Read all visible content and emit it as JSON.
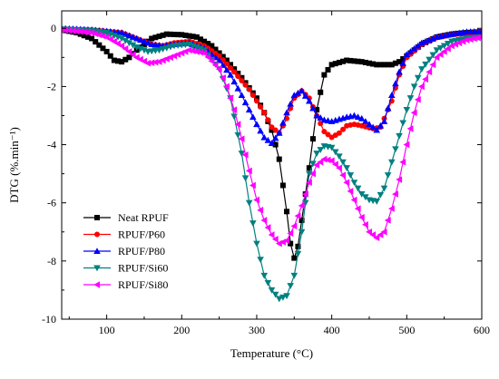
{
  "chart_data": {
    "type": "line",
    "xlabel": "Temperature (°C)",
    "ylabel": "DTG (%.min⁻¹)",
    "xlim": [
      40,
      600
    ],
    "ylim": [
      -10,
      0.6
    ],
    "xticks": [
      100,
      200,
      300,
      400,
      500,
      600
    ],
    "yticks": [
      0,
      -2,
      -4,
      -6,
      -8,
      -10
    ],
    "grid": false,
    "legend_position": "bottom-left",
    "series": [
      {
        "name": "Neat RPUF",
        "color": "#000000",
        "marker": "square",
        "points": [
          [
            40,
            -0.05
          ],
          [
            60,
            -0.15
          ],
          [
            80,
            -0.35
          ],
          [
            100,
            -0.8
          ],
          [
            110,
            -1.1
          ],
          [
            120,
            -1.15
          ],
          [
            130,
            -1.0
          ],
          [
            140,
            -0.75
          ],
          [
            160,
            -0.35
          ],
          [
            180,
            -0.2
          ],
          [
            200,
            -0.22
          ],
          [
            220,
            -0.3
          ],
          [
            240,
            -0.6
          ],
          [
            260,
            -1.1
          ],
          [
            280,
            -1.7
          ],
          [
            300,
            -2.4
          ],
          [
            310,
            -2.9
          ],
          [
            320,
            -3.5
          ],
          [
            330,
            -4.5
          ],
          [
            340,
            -6.3
          ],
          [
            345,
            -7.4
          ],
          [
            350,
            -7.9
          ],
          [
            355,
            -7.5
          ],
          [
            360,
            -6.6
          ],
          [
            370,
            -4.8
          ],
          [
            380,
            -2.8
          ],
          [
            390,
            -1.6
          ],
          [
            400,
            -1.25
          ],
          [
            420,
            -1.1
          ],
          [
            440,
            -1.15
          ],
          [
            460,
            -1.25
          ],
          [
            480,
            -1.25
          ],
          [
            490,
            -1.15
          ],
          [
            500,
            -0.95
          ],
          [
            520,
            -0.55
          ],
          [
            540,
            -0.3
          ],
          [
            560,
            -0.2
          ],
          [
            580,
            -0.15
          ],
          [
            600,
            -0.12
          ]
        ]
      },
      {
        "name": "RPUF/P60",
        "color": "#ff0000",
        "marker": "circle",
        "points": [
          [
            40,
            -0.02
          ],
          [
            80,
            -0.05
          ],
          [
            120,
            -0.15
          ],
          [
            140,
            -0.35
          ],
          [
            160,
            -0.55
          ],
          [
            175,
            -0.6
          ],
          [
            190,
            -0.5
          ],
          [
            210,
            -0.45
          ],
          [
            230,
            -0.6
          ],
          [
            250,
            -0.95
          ],
          [
            270,
            -1.5
          ],
          [
            290,
            -2.1
          ],
          [
            310,
            -2.9
          ],
          [
            320,
            -3.4
          ],
          [
            330,
            -3.6
          ],
          [
            340,
            -3.1
          ],
          [
            350,
            -2.4
          ],
          [
            360,
            -2.15
          ],
          [
            370,
            -2.4
          ],
          [
            380,
            -3.0
          ],
          [
            390,
            -3.55
          ],
          [
            400,
            -3.75
          ],
          [
            410,
            -3.6
          ],
          [
            420,
            -3.35
          ],
          [
            430,
            -3.3
          ],
          [
            440,
            -3.35
          ],
          [
            455,
            -3.45
          ],
          [
            465,
            -3.4
          ],
          [
            480,
            -2.5
          ],
          [
            490,
            -1.6
          ],
          [
            500,
            -1.0
          ],
          [
            520,
            -0.55
          ],
          [
            540,
            -0.32
          ],
          [
            560,
            -0.22
          ],
          [
            580,
            -0.17
          ],
          [
            600,
            -0.12
          ]
        ]
      },
      {
        "name": "RPUF/P80",
        "color": "#0000ff",
        "marker": "triangle-up",
        "points": [
          [
            40,
            0
          ],
          [
            80,
            -0.05
          ],
          [
            120,
            -0.15
          ],
          [
            140,
            -0.35
          ],
          [
            160,
            -0.55
          ],
          [
            175,
            -0.6
          ],
          [
            190,
            -0.55
          ],
          [
            210,
            -0.5
          ],
          [
            230,
            -0.7
          ],
          [
            250,
            -1.1
          ],
          [
            265,
            -1.6
          ],
          [
            280,
            -2.3
          ],
          [
            300,
            -3.3
          ],
          [
            310,
            -3.75
          ],
          [
            320,
            -3.95
          ],
          [
            330,
            -3.6
          ],
          [
            340,
            -2.9
          ],
          [
            350,
            -2.3
          ],
          [
            360,
            -2.15
          ],
          [
            370,
            -2.5
          ],
          [
            380,
            -3.0
          ],
          [
            390,
            -3.15
          ],
          [
            400,
            -3.2
          ],
          [
            420,
            -3.05
          ],
          [
            430,
            -3.0
          ],
          [
            440,
            -3.1
          ],
          [
            450,
            -3.3
          ],
          [
            460,
            -3.5
          ],
          [
            470,
            -3.2
          ],
          [
            480,
            -2.3
          ],
          [
            490,
            -1.5
          ],
          [
            500,
            -0.9
          ],
          [
            520,
            -0.5
          ],
          [
            540,
            -0.3
          ],
          [
            560,
            -0.2
          ],
          [
            580,
            -0.12
          ],
          [
            600,
            -0.1
          ]
        ]
      },
      {
        "name": "RPUF/Si60",
        "color": "#008080",
        "marker": "triangle-down",
        "points": [
          [
            40,
            -0.03
          ],
          [
            80,
            -0.08
          ],
          [
            100,
            -0.15
          ],
          [
            120,
            -0.35
          ],
          [
            140,
            -0.65
          ],
          [
            155,
            -0.8
          ],
          [
            170,
            -0.75
          ],
          [
            190,
            -0.6
          ],
          [
            210,
            -0.55
          ],
          [
            230,
            -0.75
          ],
          [
            250,
            -1.4
          ],
          [
            265,
            -2.4
          ],
          [
            280,
            -4.3
          ],
          [
            290,
            -6.0
          ],
          [
            300,
            -7.4
          ],
          [
            310,
            -8.5
          ],
          [
            320,
            -9.0
          ],
          [
            330,
            -9.3
          ],
          [
            340,
            -9.2
          ],
          [
            350,
            -8.5
          ],
          [
            360,
            -7.0
          ],
          [
            370,
            -5.0
          ],
          [
            380,
            -4.3
          ],
          [
            390,
            -4.05
          ],
          [
            400,
            -4.1
          ],
          [
            410,
            -4.4
          ],
          [
            420,
            -4.8
          ],
          [
            430,
            -5.3
          ],
          [
            440,
            -5.7
          ],
          [
            450,
            -5.9
          ],
          [
            460,
            -5.95
          ],
          [
            470,
            -5.5
          ],
          [
            480,
            -4.6
          ],
          [
            490,
            -3.7
          ],
          [
            500,
            -2.8
          ],
          [
            510,
            -2.0
          ],
          [
            520,
            -1.4
          ],
          [
            540,
            -0.75
          ],
          [
            560,
            -0.45
          ],
          [
            580,
            -0.35
          ],
          [
            600,
            -0.3
          ]
        ]
      },
      {
        "name": "RPUF/Si80",
        "color": "#ff00ff",
        "marker": "triangle-left",
        "points": [
          [
            40,
            -0.05
          ],
          [
            80,
            -0.15
          ],
          [
            100,
            -0.3
          ],
          [
            120,
            -0.6
          ],
          [
            140,
            -1.0
          ],
          [
            155,
            -1.2
          ],
          [
            170,
            -1.15
          ],
          [
            190,
            -0.95
          ],
          [
            210,
            -0.75
          ],
          [
            230,
            -0.85
          ],
          [
            250,
            -1.4
          ],
          [
            260,
            -2.0
          ],
          [
            270,
            -2.8
          ],
          [
            280,
            -3.8
          ],
          [
            290,
            -4.9
          ],
          [
            300,
            -5.9
          ],
          [
            310,
            -6.6
          ],
          [
            320,
            -7.1
          ],
          [
            330,
            -7.4
          ],
          [
            340,
            -7.3
          ],
          [
            350,
            -6.8
          ],
          [
            360,
            -6.1
          ],
          [
            370,
            -5.3
          ],
          [
            380,
            -4.7
          ],
          [
            390,
            -4.5
          ],
          [
            400,
            -4.55
          ],
          [
            410,
            -4.8
          ],
          [
            420,
            -5.3
          ],
          [
            430,
            -5.9
          ],
          [
            440,
            -6.5
          ],
          [
            450,
            -7.0
          ],
          [
            460,
            -7.2
          ],
          [
            470,
            -7.0
          ],
          [
            480,
            -6.2
          ],
          [
            490,
            -5.2
          ],
          [
            500,
            -4.0
          ],
          [
            510,
            -2.9
          ],
          [
            520,
            -2.0
          ],
          [
            540,
            -1.0
          ],
          [
            560,
            -0.6
          ],
          [
            580,
            -0.4
          ],
          [
            600,
            -0.3
          ]
        ]
      }
    ]
  }
}
